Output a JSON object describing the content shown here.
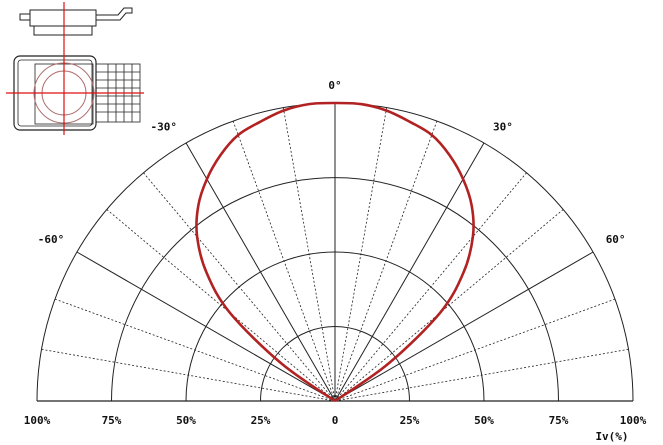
{
  "chart_data": {
    "type": "polar",
    "angle_ticks": [
      "0°",
      "30°",
      "-30°",
      "60°",
      "-60°"
    ],
    "radius_ticks_left": [
      "100%",
      "75%",
      "50%",
      "25%"
    ],
    "radius_center_label": "0",
    "radius_ticks_right": [
      "25%",
      "50%",
      "75%",
      "100%"
    ],
    "axis_unit_label": "Iv(%)",
    "angle_range_deg": [
      -90,
      90
    ],
    "radius_range": [
      0,
      100
    ],
    "angle_gridline_step_deg": 10,
    "major_angle_gridline_step_deg": 30,
    "radius_gridline_step": 25,
    "series": [
      {
        "color": "#b22222",
        "points": [
          {
            "angle": -60,
            "value": 0
          },
          {
            "angle": -55,
            "value": 22
          },
          {
            "angle": -50,
            "value": 46
          },
          {
            "angle": -45,
            "value": 61
          },
          {
            "angle": -40,
            "value": 72
          },
          {
            "angle": -35,
            "value": 80
          },
          {
            "angle": -30,
            "value": 86
          },
          {
            "angle": -25,
            "value": 91
          },
          {
            "angle": -20,
            "value": 95
          },
          {
            "angle": -15,
            "value": 97
          },
          {
            "angle": -10,
            "value": 99
          },
          {
            "angle": -5,
            "value": 100
          },
          {
            "angle": 0,
            "value": 100
          },
          {
            "angle": 5,
            "value": 100
          },
          {
            "angle": 10,
            "value": 99
          },
          {
            "angle": 15,
            "value": 97
          },
          {
            "angle": 20,
            "value": 95
          },
          {
            "angle": 25,
            "value": 91
          },
          {
            "angle": 30,
            "value": 86
          },
          {
            "angle": 35,
            "value": 80
          },
          {
            "angle": 40,
            "value": 72
          },
          {
            "angle": 45,
            "value": 61
          },
          {
            "angle": 50,
            "value": 46
          },
          {
            "angle": 55,
            "value": 22
          },
          {
            "angle": 60,
            "value": 0
          }
        ]
      }
    ]
  },
  "package_icon": "led-package-drawing-icon"
}
